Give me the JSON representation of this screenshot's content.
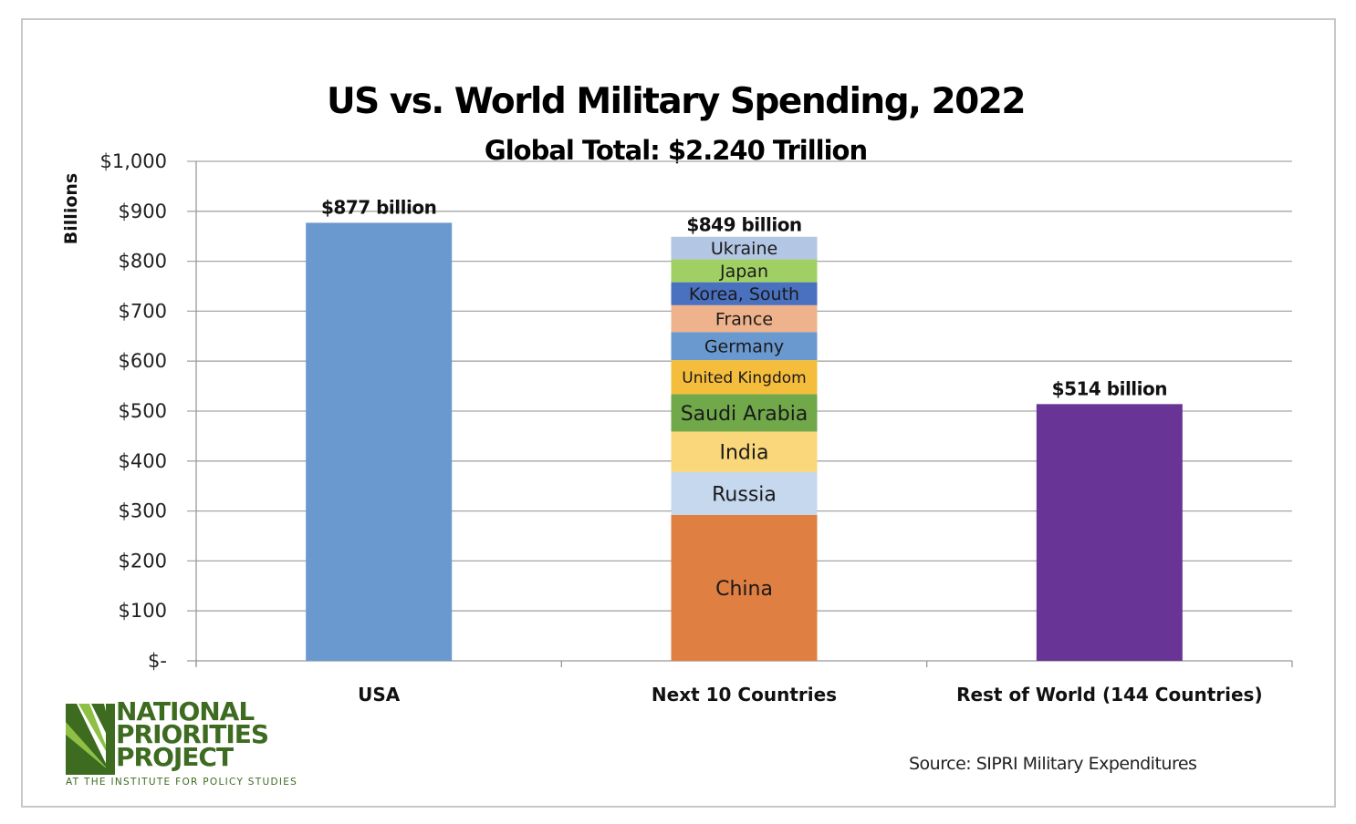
{
  "chart_data": {
    "type": "bar",
    "stacked": true,
    "title": "US vs. World Military Spending, 2022",
    "subtitle": "Global Total: $2.240 Trillion",
    "xlabel": "",
    "ylabel": "Billions",
    "ylim": [
      0,
      1000
    ],
    "yticks": [
      0,
      100,
      200,
      300,
      400,
      500,
      600,
      700,
      800,
      900,
      1000
    ],
    "ytick_labels": [
      "$-",
      "$100",
      "$200",
      "$300",
      "$400",
      "$500",
      "$600",
      "$700",
      "$800",
      "$900",
      "$1,000"
    ],
    "grid": true,
    "legend": "none",
    "categories": [
      "USA",
      "Next 10 Countries",
      "Rest of World (144 Countries)"
    ],
    "bars": [
      {
        "category": "USA",
        "total_label": "$877 billion",
        "segments": [
          {
            "name": "USA",
            "value": 877,
            "color": "#6a99d0",
            "show_label": false
          }
        ]
      },
      {
        "category": "Next 10 Countries",
        "total_label": "$849 billion",
        "segments": [
          {
            "name": "China",
            "value": 292,
            "color": "#e07f42",
            "show_label": true
          },
          {
            "name": "Russia",
            "value": 86,
            "color": "#c5d8ee",
            "show_label": true
          },
          {
            "name": "India",
            "value": 81,
            "color": "#f9d77a",
            "show_label": true
          },
          {
            "name": "Saudi Arabia",
            "value": 75,
            "color": "#70a84a",
            "show_label": true
          },
          {
            "name": "United Kingdom",
            "value": 68,
            "color": "#f5bd3c",
            "show_label": true
          },
          {
            "name": "Germany",
            "value": 56,
            "color": "#6a99d0",
            "show_label": true
          },
          {
            "name": "France",
            "value": 54,
            "color": "#eeb38c",
            "show_label": true
          },
          {
            "name": "Korea, South",
            "value": 46,
            "color": "#4a70c0",
            "show_label": true
          },
          {
            "name": "Japan",
            "value": 46,
            "color": "#a0d063",
            "show_label": true
          },
          {
            "name": "Ukraine",
            "value": 45,
            "color": "#b3c6e4",
            "show_label": true
          }
        ]
      },
      {
        "category": "Rest of World (144 Countries)",
        "total_label": "$514 billion",
        "segments": [
          {
            "name": "Rest of World",
            "value": 514,
            "color": "#683597",
            "show_label": false
          }
        ]
      }
    ],
    "source": "Source: SIPRI Military Expenditures"
  },
  "logo": {
    "lines": [
      "NATIONAL",
      "PRIORITIES",
      "PROJECT"
    ],
    "tagline": "AT THE INSTITUTE FOR POLICY STUDIES",
    "color": "#3d6b1f",
    "accent_color": "#8fbf45"
  }
}
